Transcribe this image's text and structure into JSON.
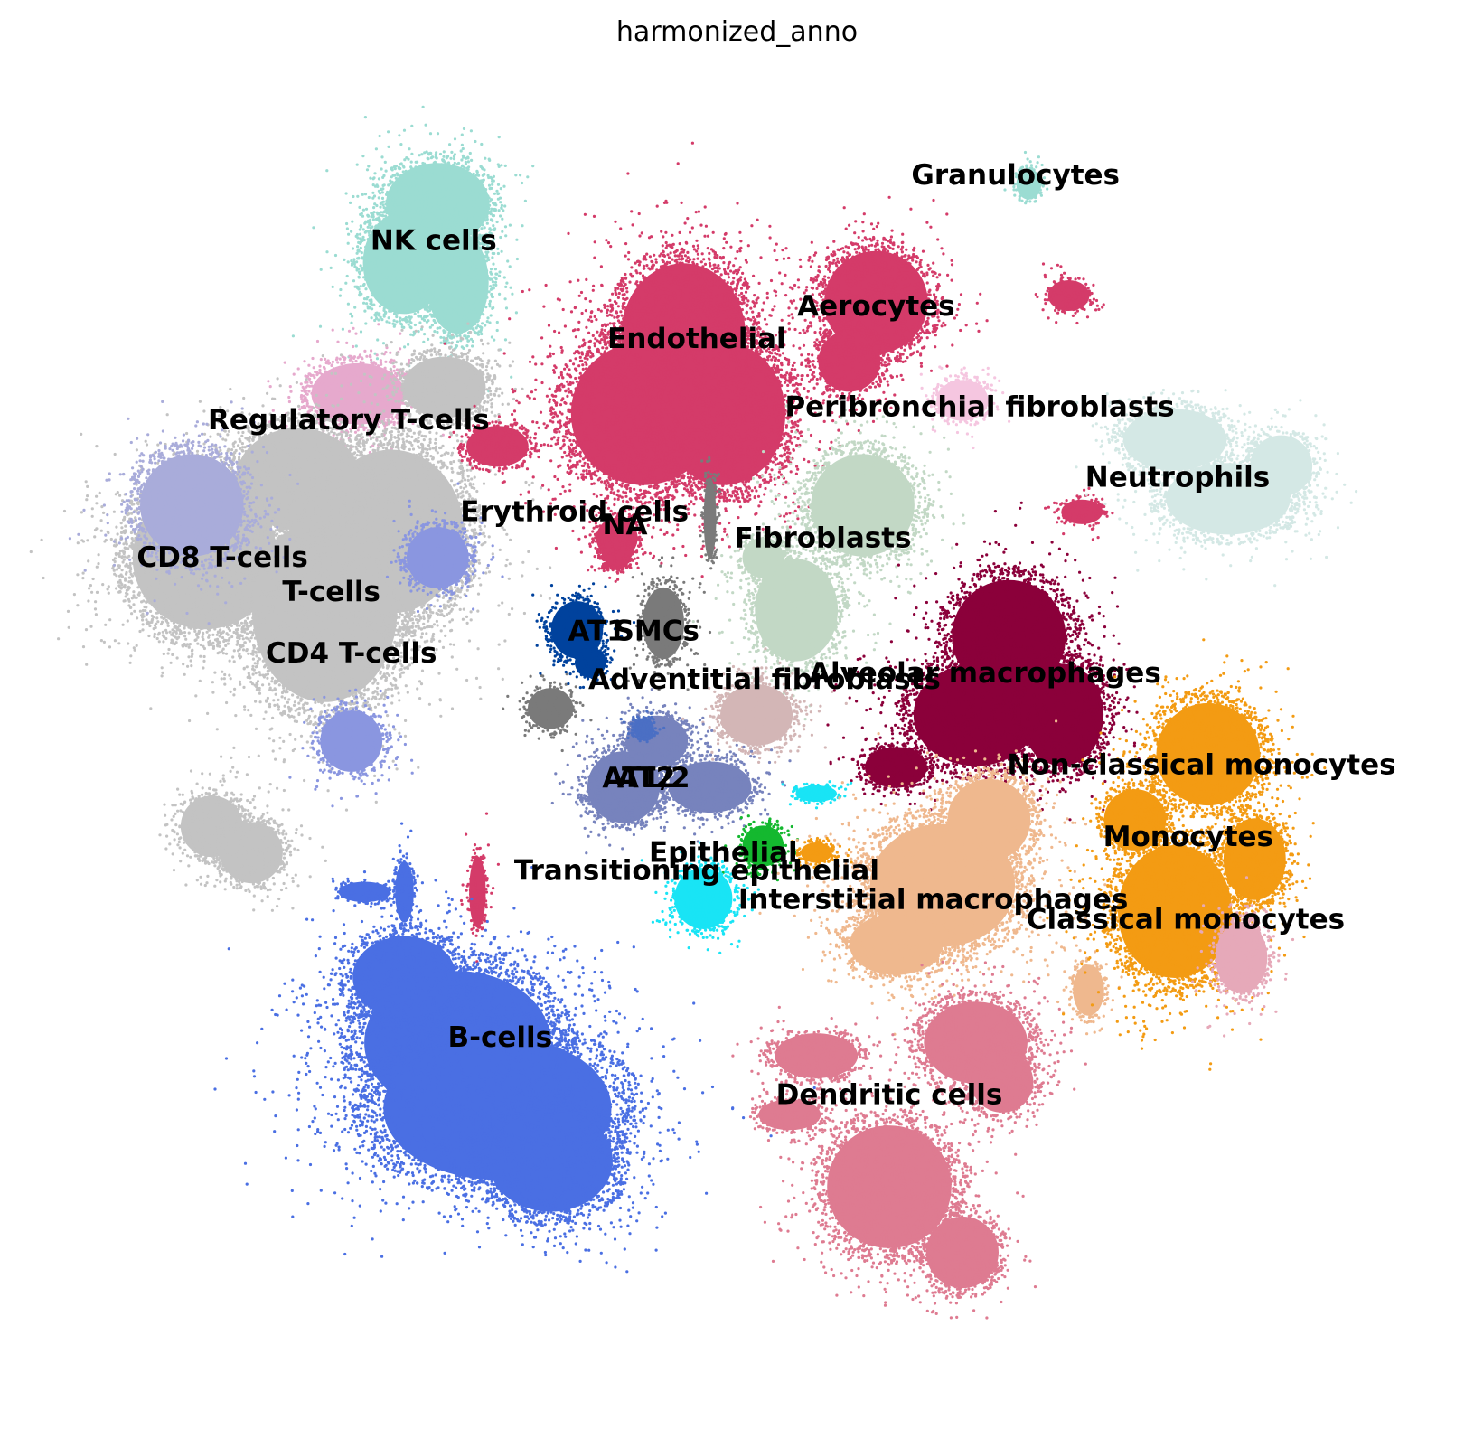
{
  "chart_data": {
    "type": "scatter",
    "title": "harmonized_anno",
    "xlabel": "",
    "ylabel": "",
    "axes_visible": false,
    "legend": "on data",
    "clusters": [
      {
        "name": "NK cells",
        "color": "#9bdcd2",
        "blobs": [
          [
            0.275,
            0.09,
            0.05,
            0.04
          ],
          [
            0.25,
            0.135,
            0.04,
            0.05
          ],
          [
            0.29,
            0.15,
            0.03,
            0.05
          ]
        ],
        "label_pos": [
          0.272,
          0.125
        ]
      },
      {
        "name": "Regulatory T-cells",
        "color": "#e6a9cd",
        "blobs": [
          [
            0.215,
            0.235,
            0.045,
            0.03
          ]
        ],
        "label_pos": [
          0.208,
          0.262
        ]
      },
      {
        "name": "T-cells",
        "color": "#c3c3c3",
        "blobs": [
          [
            0.1,
            0.36,
            0.07,
            0.07
          ],
          [
            0.19,
            0.4,
            0.07,
            0.09
          ],
          [
            0.24,
            0.34,
            0.07,
            0.08
          ],
          [
            0.17,
            0.3,
            0.06,
            0.05
          ],
          [
            0.28,
            0.23,
            0.04,
            0.03
          ],
          [
            0.105,
            0.565,
            0.03,
            0.03
          ],
          [
            0.135,
            0.585,
            0.03,
            0.03
          ]
        ],
        "label_pos": [
          0.195,
          0.393
        ]
      },
      {
        "name": "CD8 T-cells",
        "color": "#a9acda",
        "blobs": [
          [
            0.09,
            0.32,
            0.05,
            0.05
          ]
        ],
        "label_pos": [
          0.113,
          0.367
        ]
      },
      {
        "name": "CD4 T-cells",
        "color": "#8a96e0",
        "blobs": [
          [
            0.21,
            0.5,
            0.03,
            0.03
          ],
          [
            0.275,
            0.36,
            0.03,
            0.03
          ]
        ],
        "label_pos": [
          0.21,
          0.44
        ]
      },
      {
        "name": "Endothelial",
        "color": "#d43b69",
        "blobs": [
          [
            0.46,
            0.19,
            0.06,
            0.07
          ],
          [
            0.43,
            0.25,
            0.07,
            0.07
          ],
          [
            0.49,
            0.25,
            0.06,
            0.07
          ],
          [
            0.41,
            0.345,
            0.02,
            0.02
          ],
          [
            0.32,
            0.275,
            0.03,
            0.02
          ],
          [
            0.305,
            0.615,
            0.008,
            0.035
          ]
        ],
        "label_pos": [
          0.47,
          0.2
        ]
      },
      {
        "name": "Aerocytes",
        "color": "#d43b69",
        "blobs": [
          [
            0.605,
            0.165,
            0.05,
            0.05
          ],
          [
            0.585,
            0.21,
            0.03,
            0.03
          ],
          [
            0.75,
            0.16,
            0.02,
            0.015
          ],
          [
            0.76,
            0.325,
            0.02,
            0.012
          ]
        ],
        "label_pos": [
          0.605,
          0.175
        ]
      },
      {
        "name": "Erythroid cells",
        "color": "#d43b69",
        "blobs": [
          [
            0.41,
            0.36,
            0.012,
            0.012
          ]
        ],
        "label_pos": [
          0.378,
          0.332
        ]
      },
      {
        "name": "NA",
        "color": "#d43b69",
        "blobs": [
          [
            0.41,
            0.355,
            0.015,
            0.015
          ]
        ],
        "label_pos": [
          0.416,
          0.342
        ]
      },
      {
        "name": "Granulocytes",
        "color": "#9bdcd2",
        "blobs": [
          [
            0.72,
            0.075,
            0.012,
            0.015
          ]
        ],
        "label_pos": [
          0.71,
          0.075
        ]
      },
      {
        "name": "Peribronchial fibroblasts",
        "color": "#f5c6e0",
        "blobs": [
          [
            0.67,
            0.24,
            0.025,
            0.02
          ]
        ],
        "label_pos": [
          0.683,
          0.252
        ]
      },
      {
        "name": "Neutrophils",
        "color": "#d4e8e5",
        "blobs": [
          [
            0.83,
            0.27,
            0.05,
            0.03
          ],
          [
            0.87,
            0.315,
            0.06,
            0.035
          ],
          [
            0.91,
            0.29,
            0.03,
            0.03
          ]
        ],
        "label_pos": [
          0.832,
          0.306
        ]
      },
      {
        "name": "Fibroblasts",
        "color": "#c2d8c5",
        "blobs": [
          [
            0.595,
            0.32,
            0.05,
            0.05
          ],
          [
            0.545,
            0.4,
            0.04,
            0.05
          ],
          [
            0.52,
            0.36,
            0.02,
            0.02
          ]
        ],
        "label_pos": [
          0.565,
          0.352
        ]
      },
      {
        "name": "SMCs",
        "color": "#7a7a7a",
        "blobs": [
          [
            0.445,
            0.41,
            0.02,
            0.035
          ],
          [
            0.36,
            0.475,
            0.022,
            0.02
          ],
          [
            0.48,
            0.33,
            0.006,
            0.04
          ]
        ],
        "label_pos": [
          0.44,
          0.423
        ]
      },
      {
        "name": "AT1",
        "color": "#00429d",
        "blobs": [
          [
            0.38,
            0.415,
            0.025,
            0.028
          ],
          [
            0.39,
            0.44,
            0.015,
            0.015
          ]
        ],
        "label_pos": [
          0.395,
          0.423
        ]
      },
      {
        "name": "Adventitial fibroblasts",
        "color": "#d3b6b6",
        "blobs": [
          [
            0.515,
            0.48,
            0.035,
            0.03
          ]
        ],
        "label_pos": [
          0.521,
          0.46
        ]
      },
      {
        "name": "Alveolar macrophages",
        "color": "#8b003a",
        "blobs": [
          [
            0.705,
            0.42,
            0.055,
            0.055
          ],
          [
            0.68,
            0.48,
            0.06,
            0.05
          ],
          [
            0.745,
            0.48,
            0.04,
            0.05
          ],
          [
            0.62,
            0.52,
            0.03,
            0.02
          ]
        ],
        "label_pos": [
          0.687,
          0.455
        ]
      },
      {
        "name": "AT2",
        "color": "#7783bd",
        "blobs": [
          [
            0.415,
            0.535,
            0.035,
            0.035
          ],
          [
            0.44,
            0.5,
            0.03,
            0.025
          ],
          [
            0.48,
            0.535,
            0.04,
            0.025
          ]
        ],
        "label_pos": [
          0.432,
          0.535
        ]
      },
      {
        "name": "AT1/2",
        "color": "#4b6fc4",
        "blobs": [
          [
            0.43,
            0.49,
            0.01,
            0.01
          ]
        ],
        "label_pos": [
          0.432,
          0.535
        ]
      },
      {
        "name": "Epithelial",
        "color": "#14b82f",
        "blobs": [
          [
            0.52,
            0.58,
            0.02,
            0.02
          ]
        ],
        "label_pos": [
          0.49,
          0.592
        ]
      },
      {
        "name": "Transitioning epithelial",
        "color": "#19e4f5",
        "blobs": [
          [
            0.475,
            0.62,
            0.028,
            0.03
          ],
          [
            0.56,
            0.54,
            0.02,
            0.008
          ]
        ],
        "label_pos": [
          0.47,
          0.606
        ]
      },
      {
        "name": "Interstitial macrophages",
        "color": "#efb88e",
        "blobs": [
          [
            0.655,
            0.61,
            0.07,
            0.06
          ],
          [
            0.69,
            0.56,
            0.04,
            0.04
          ],
          [
            0.62,
            0.655,
            0.045,
            0.03
          ],
          [
            0.765,
            0.69,
            0.015,
            0.025
          ]
        ],
        "label_pos": [
          0.648,
          0.628
        ]
      },
      {
        "name": "Non-classical monocytes",
        "color": "#f39b13",
        "blobs": [
          [
            0.855,
            0.51,
            0.05,
            0.05
          ],
          [
            0.8,
            0.56,
            0.03,
            0.03
          ]
        ],
        "label_pos": [
          0.85,
          0.525
        ]
      },
      {
        "name": "Monocytes",
        "color": "#f39b13",
        "blobs": [
          [
            0.83,
            0.63,
            0.055,
            0.065
          ],
          [
            0.89,
            0.59,
            0.03,
            0.04
          ],
          [
            0.56,
            0.585,
            0.015,
            0.01
          ]
        ],
        "label_pos": [
          0.84,
          0.58
        ]
      },
      {
        "name": "Classical monocytes",
        "color": "#e6a9b9",
        "blobs": [
          [
            0.88,
            0.665,
            0.025,
            0.035
          ]
        ],
        "label_pos": [
          0.838,
          0.643
        ]
      },
      {
        "name": "Dendritic cells",
        "color": "#de7b91",
        "blobs": [
          [
            0.615,
            0.84,
            0.06,
            0.06
          ],
          [
            0.67,
            0.89,
            0.035,
            0.035
          ],
          [
            0.56,
            0.74,
            0.04,
            0.022
          ],
          [
            0.68,
            0.73,
            0.05,
            0.04
          ],
          [
            0.7,
            0.76,
            0.03,
            0.03
          ],
          [
            0.54,
            0.785,
            0.03,
            0.015
          ]
        ],
        "label_pos": [
          0.615,
          0.777
        ]
      },
      {
        "name": "B-cells",
        "color": "#4a6fe3",
        "blobs": [
          [
            0.29,
            0.73,
            0.09,
            0.07
          ],
          [
            0.32,
            0.78,
            0.11,
            0.07
          ],
          [
            0.36,
            0.82,
            0.06,
            0.05
          ],
          [
            0.25,
            0.68,
            0.05,
            0.04
          ],
          [
            0.25,
            0.615,
            0.009,
            0.03
          ],
          [
            0.22,
            0.615,
            0.025,
            0.01
          ]
        ],
        "label_pos": [
          0.322,
          0.733
        ]
      }
    ]
  }
}
